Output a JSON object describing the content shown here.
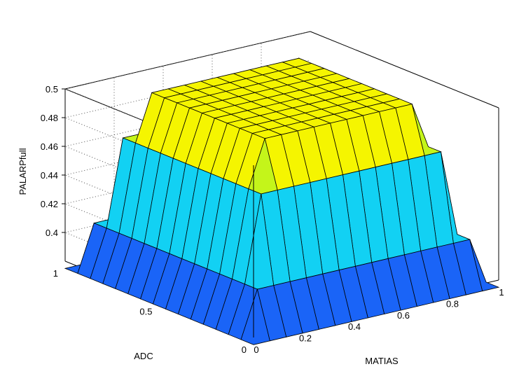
{
  "chart_data": {
    "type": "surface",
    "title": "",
    "xlabel": "MATIAS",
    "ylabel": "ADC",
    "zlabel": "PALARPfull",
    "xlim": [
      0,
      1
    ],
    "ylim": [
      0,
      1
    ],
    "zlim": [
      0.38,
      0.5
    ],
    "grid": true,
    "x_ticks": [
      "0",
      "0.2",
      "0.4",
      "0.6",
      "0.8",
      "1"
    ],
    "y_ticks": [
      "0",
      "0.5",
      "1"
    ],
    "z_ticks": [
      "0.4",
      "0.42",
      "0.44",
      "0.46",
      "0.48",
      "0.5"
    ],
    "grid_resolution": 15,
    "surface": {
      "description_values": "z = 0.375 + 0.125 * min(s(x), s(y)); plateau 0.5 for 0.2<=x,y<=0.8",
      "z_min": 0.375,
      "z_max": 0.5,
      "plateau_range": [
        0.2,
        0.8
      ]
    },
    "colormap": [
      "#1a64f7",
      "#2893ee",
      "#12d1f3",
      "#6ef98f",
      "#c4f51a",
      "#f5f500"
    ],
    "colormap_breaks": [
      0.375,
      0.396,
      0.417,
      0.438,
      0.458,
      0.479,
      0.5
    ]
  }
}
